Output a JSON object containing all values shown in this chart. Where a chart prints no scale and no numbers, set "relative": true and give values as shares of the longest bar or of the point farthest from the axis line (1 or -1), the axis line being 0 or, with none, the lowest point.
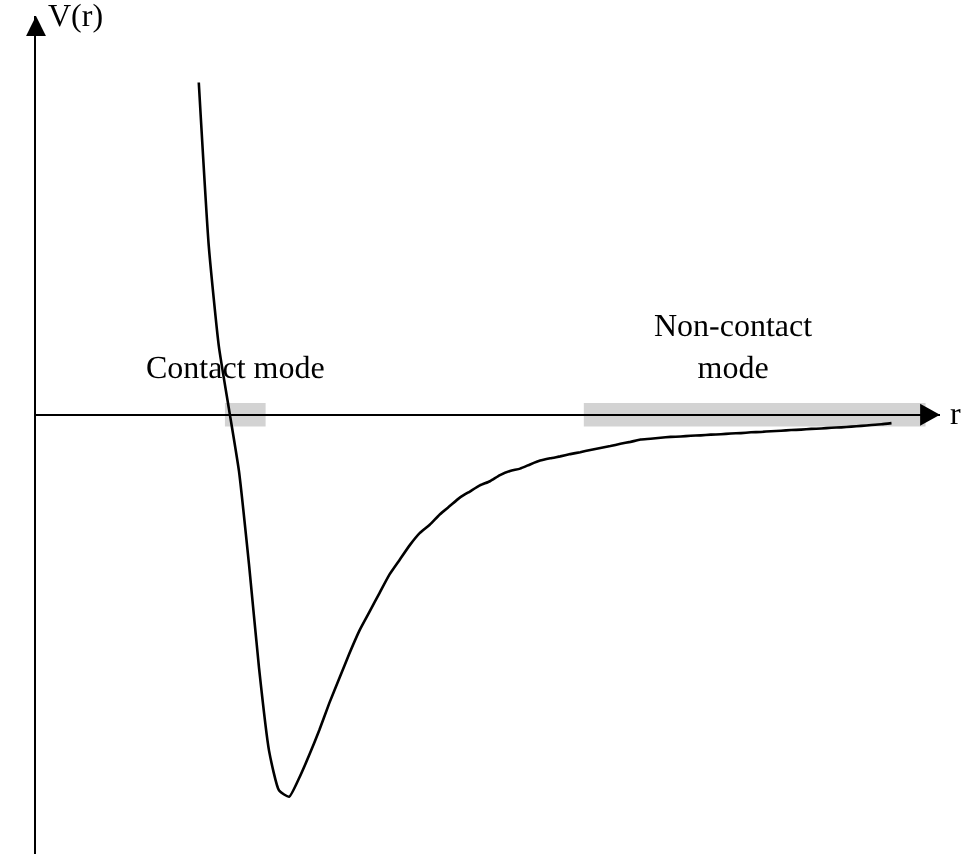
{
  "chart_data": {
    "type": "line",
    "relative": true,
    "xlabel": "r",
    "ylabel": "V(r)",
    "color": "#000000",
    "line_style": "solid",
    "marker": "none",
    "categories": [
      null,
      null,
      null,
      null,
      null,
      null,
      null,
      null,
      null,
      null,
      null,
      null,
      null,
      null,
      null,
      null,
      null,
      null,
      null,
      null,
      null,
      null,
      null,
      null,
      null,
      null,
      null,
      null,
      null,
      null,
      null,
      null,
      null,
      null,
      null,
      null,
      null,
      null,
      null,
      null,
      null,
      null,
      null,
      null,
      null,
      null,
      null,
      null,
      null,
      null,
      null,
      null,
      null,
      null,
      null,
      null,
      null,
      null,
      null,
      null,
      null,
      null,
      null,
      null,
      null,
      null,
      null,
      null,
      null,
      null
    ],
    "values": [
      0.87,
      0.44,
      0.179,
      0.016,
      -0.147,
      -0.391,
      -0.663,
      -0.88,
      -0.984,
      -1,
      -0.951,
      -0.891,
      -0.826,
      -0.755,
      -0.69,
      -0.625,
      -0.565,
      -0.516,
      -0.467,
      -0.418,
      -0.38,
      -0.342,
      -0.31,
      -0.288,
      -0.261,
      -0.239,
      -0.217,
      -0.201,
      -0.185,
      -0.174,
      -0.158,
      -0.147,
      -0.141,
      -0.13,
      -0.12,
      -0.114,
      -0.109,
      -0.103,
      -0.098,
      -0.092,
      -0.087,
      -0.082,
      -0.076,
      -0.071,
      -0.065,
      -0.063,
      -0.06,
      -0.058,
      -0.057,
      -0.055,
      -0.054,
      -0.052,
      -0.051,
      -0.049,
      -0.048,
      -0.046,
      -0.045,
      -0.043,
      -0.042,
      -0.04,
      -0.039,
      -0.037,
      -0.036,
      -0.034,
      -0.033,
      -0.031,
      -0.029,
      -0.027,
      -0.025,
      -0.022
    ],
    "annotations": [
      "Contact mode",
      "Non-contact\nmode"
    ]
  }
}
